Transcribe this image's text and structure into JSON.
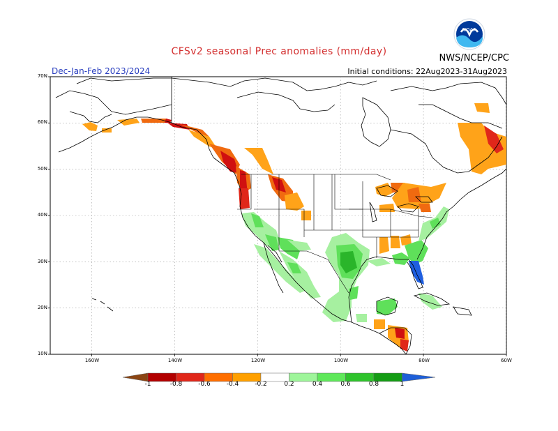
{
  "header": {
    "title": "CFSv2 seasonal Prec anomalies (mm/day)",
    "season": "Dec-Jan-Feb 2023/2024",
    "initial_conditions": "Initial conditions: 22Aug2023-31Aug2023",
    "agency": "NWS/NCEP/CPC",
    "logo_text": "NOAA"
  },
  "map": {
    "lat_labels": [
      "70N",
      "60N",
      "50N",
      "40N",
      "30N",
      "20N",
      "10N"
    ],
    "lon_labels": [
      "160W",
      "140W",
      "120W",
      "100W",
      "80W",
      "60W"
    ],
    "extent": {
      "lon_min": -170,
      "lon_max": -60,
      "lat_min": 10,
      "lat_max": 70
    }
  },
  "legend": {
    "labels": [
      "-1",
      "-0.8",
      "-0.6",
      "-0.4",
      "-0.2",
      "0.2",
      "0.4",
      "0.6",
      "0.8",
      "1"
    ],
    "colors": [
      "#8b4513",
      "#b20000",
      "#e0271a",
      "#ff6f00",
      "#ffa000",
      "#ffffff",
      "#9ef59a",
      "#5fe85a",
      "#2fc32c",
      "#149c14",
      "#1e5fd8"
    ]
  },
  "colors": {
    "dry_strong": "#d01010",
    "dry_mid": "#f06a10",
    "dry_weak": "#ffa319",
    "wet_weak": "#a6f0a0",
    "wet_mid": "#5fe05a",
    "wet_strong": "#2ab52a",
    "wet_extreme": "#1f5fe0"
  }
}
